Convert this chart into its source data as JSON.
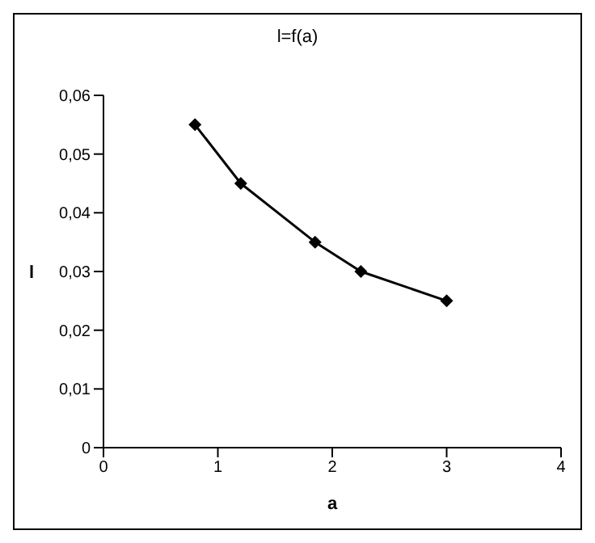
{
  "chart_data": {
    "type": "line",
    "title": "l=f(a)",
    "xlabel": "a",
    "ylabel": "l",
    "x": [
      0.8,
      1.2,
      1.85,
      2.25,
      3
    ],
    "series": [
      {
        "color": "#000000",
        "values": [
          0.055,
          0.045,
          0.035,
          0.03,
          0.025
        ]
      }
    ],
    "xlim": [
      0,
      4
    ],
    "xticks": [
      0,
      1,
      2,
      3,
      4
    ],
    "ylim": [
      0,
      0.06
    ],
    "yticks": [
      0,
      {
        "value": 0.01,
        "label": "0,01"
      },
      {
        "value": 0.02,
        "label": "0,02"
      },
      {
        "value": 0.03,
        "label": "0,03"
      },
      {
        "value": 0.04,
        "label": "0,04"
      },
      {
        "value": 0.05,
        "label": "0,05"
      },
      {
        "value": 0.06,
        "label": "0,06"
      }
    ],
    "marker": "diamond",
    "line_style": "solid",
    "grid": false,
    "legend": false
  }
}
